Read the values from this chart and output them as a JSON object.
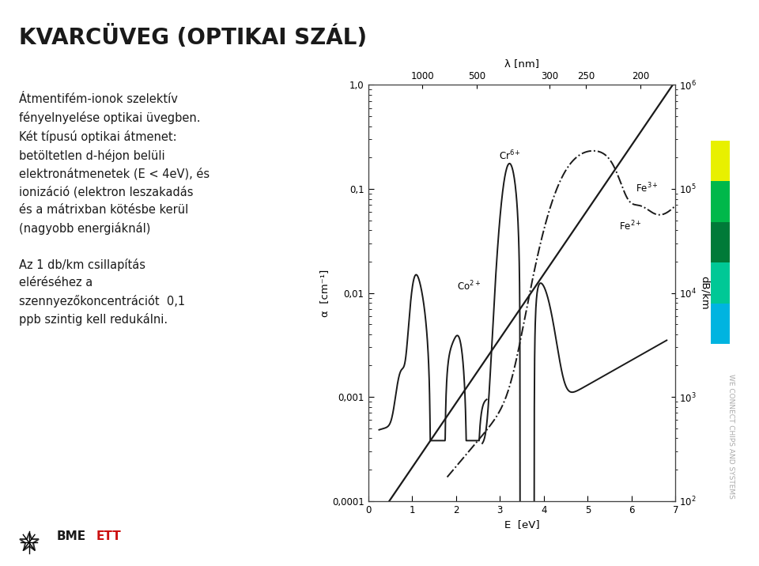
{
  "title": "KVARCÜVEG (OPTIKAI SZÁL)",
  "title_fontsize": 20,
  "title_fontweight": "bold",
  "bg_color": "#ffffff",
  "text_color": "#1a1a1a",
  "left_text_lines": [
    "Átmentifém-ionok szelektív",
    "fényelnyelése optikai üvegben.",
    "Két típusú optikai átmenet:",
    "betöltetlen d-héjon belüli",
    "elektronátmenetek (E < 4eV), és",
    "ionizáció (elektron leszakadás",
    "és a mátrixban kötésbe kerül",
    "(nagyobb energiáknál)",
    "",
    "Az 1 db/km csillapítás",
    "eléréséhez a",
    "szennyezőkoncentrációt  0,1",
    "ppb szintig kell redukálni."
  ],
  "xlabel": "E  [eV]",
  "ylabel_left": "α  [cm⁻¹]",
  "ylabel_right": "dB/km",
  "xlabel_top": "λ [nm]",
  "ytick_labels_left": [
    "0,0001",
    "0,001",
    "0,01",
    "0,1",
    "1,0"
  ],
  "ytick_vals": [
    0.0001,
    0.001,
    0.01,
    0.1,
    1.0
  ],
  "ytick_labels_right": [
    "10²",
    "10³",
    "10⁴",
    "10⁵",
    "10⁶"
  ],
  "color_bar_colors": [
    "#e8f000",
    "#00b84a",
    "#007a38",
    "#00c896",
    "#00b4e0"
  ],
  "sidebar_text": "WE CONNECT CHIPS AND SYSTEMS"
}
